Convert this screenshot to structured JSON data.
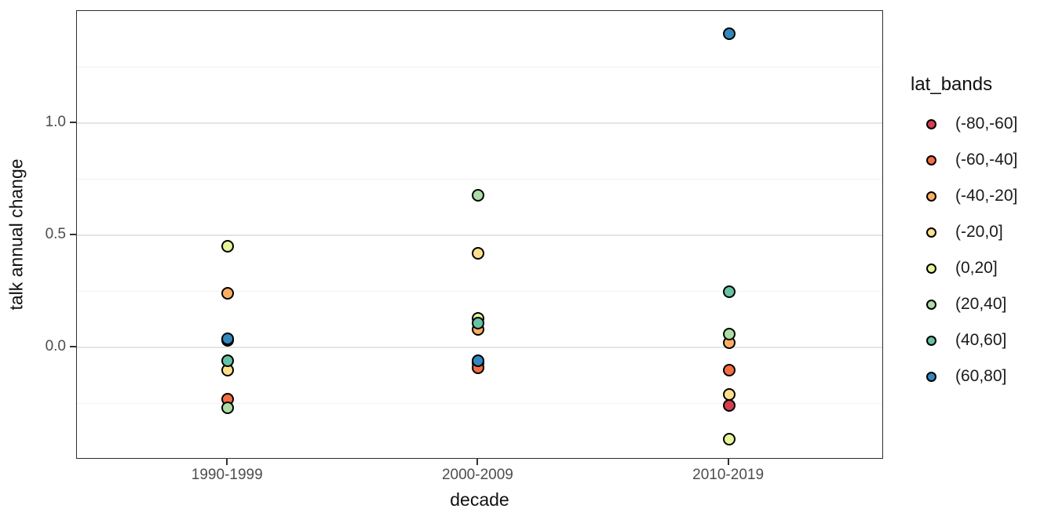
{
  "axes": {
    "x_title": "decade",
    "y_title": "talk annual change",
    "x_tick_labels": [
      "1990-1999",
      "2000-2009",
      "2010-2019"
    ],
    "y_tick_labels": [
      "1.0",
      "0.5",
      "0.0"
    ],
    "y_tick_values": [
      1.0,
      0.5,
      0.0
    ]
  },
  "legend": {
    "title": "lat_bands",
    "items": [
      {
        "label": "(-80,-60]",
        "color": "#D53E4F"
      },
      {
        "label": "(-60,-40]",
        "color": "#F46D43"
      },
      {
        "label": "(-40,-20]",
        "color": "#FDAE61"
      },
      {
        "label": "(-20,0]",
        "color": "#FEE08B"
      },
      {
        "label": "(0,20]",
        "color": "#E6F598"
      },
      {
        "label": "(20,40]",
        "color": "#ABDDA4"
      },
      {
        "label": "(40,60]",
        "color": "#66C2A5"
      },
      {
        "label": "(60,80]",
        "color": "#3288BD"
      }
    ]
  },
  "chart_data": {
    "type": "scatter",
    "title": "",
    "xlabel": "decade",
    "ylabel": "talk annual change",
    "categories": [
      "1990-1999",
      "2000-2009",
      "2010-2019"
    ],
    "series": [
      {
        "name": "(-80,-60]",
        "color": "#D53E4F",
        "values": [
          0.03,
          -0.07,
          -0.26
        ]
      },
      {
        "name": "(-60,-40]",
        "color": "#F46D43",
        "values": [
          -0.23,
          -0.09,
          -0.1
        ]
      },
      {
        "name": "(-40,-20]",
        "color": "#FDAE61",
        "values": [
          0.24,
          0.08,
          0.02
        ]
      },
      {
        "name": "(-20,0]",
        "color": "#FEE08B",
        "values": [
          -0.1,
          0.42,
          -0.21
        ]
      },
      {
        "name": "(0,20]",
        "color": "#E6F598",
        "values": [
          0.45,
          0.13,
          -0.41
        ]
      },
      {
        "name": "(20,40]",
        "color": "#ABDDA4",
        "values": [
          -0.27,
          0.68,
          0.06
        ]
      },
      {
        "name": "(40,60]",
        "color": "#66C2A5",
        "values": [
          -0.06,
          0.11,
          0.25
        ]
      },
      {
        "name": "(60,80]",
        "color": "#3288BD",
        "values": [
          0.04,
          -0.06,
          1.4
        ]
      }
    ],
    "ylim": [
      -0.5,
      1.5
    ],
    "y_major_gridlines": [
      1.0,
      0.5,
      0.0
    ],
    "y_minor_gridlines": [
      1.25,
      0.75,
      0.25,
      -0.25
    ],
    "grid": true,
    "legend_title": "lat_bands",
    "legend_position": "right",
    "point_style": "filled circle with black outline"
  }
}
